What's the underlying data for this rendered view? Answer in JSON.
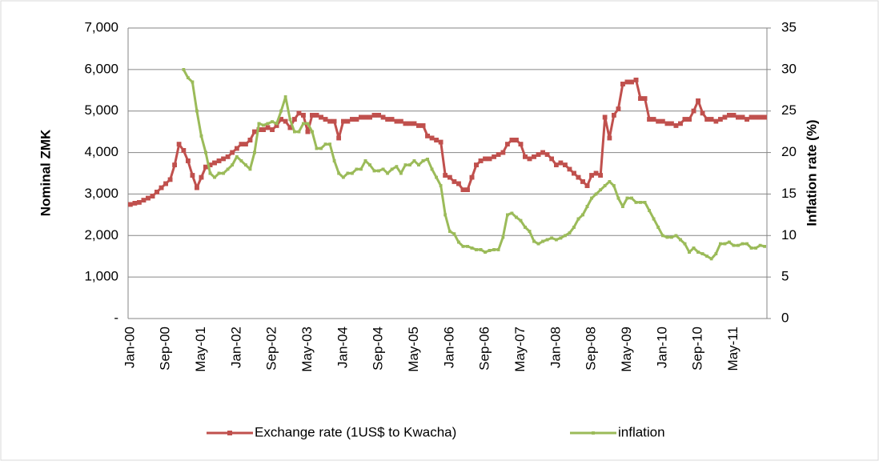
{
  "chart_data": {
    "type": "line",
    "categories": [
      "Jan-00",
      null,
      null,
      null,
      null,
      null,
      null,
      null,
      "Sep-00",
      null,
      null,
      null,
      null,
      null,
      null,
      null,
      "May-01",
      null,
      null,
      null,
      null,
      null,
      null,
      null,
      "Jan-02",
      null,
      null,
      null,
      null,
      null,
      null,
      null,
      "Sep-02",
      null,
      null,
      null,
      null,
      null,
      null,
      null,
      "May-03",
      null,
      null,
      null,
      null,
      null,
      null,
      null,
      "Jan-04",
      null,
      null,
      null,
      null,
      null,
      null,
      null,
      "Sep-04",
      null,
      null,
      null,
      null,
      null,
      null,
      null,
      "May-05",
      null,
      null,
      null,
      null,
      null,
      null,
      null,
      "Jan-06",
      null,
      null,
      null,
      null,
      null,
      null,
      null,
      "Sep-06",
      null,
      null,
      null,
      null,
      null,
      null,
      null,
      "May-07",
      null,
      null,
      null,
      null,
      null,
      null,
      null,
      "Jan-08",
      null,
      null,
      null,
      null,
      null,
      null,
      null,
      "Sep-08",
      null,
      null,
      null,
      null,
      null,
      null,
      null,
      "May-09",
      null,
      null,
      null,
      null,
      null,
      null,
      null,
      "Jan-10",
      null,
      null,
      null,
      null,
      null,
      null,
      null,
      "Sep-10",
      null,
      null,
      null,
      null,
      null,
      null,
      null,
      "May-11",
      null,
      null,
      null,
      null,
      null,
      null,
      null
    ],
    "y_label": "Nominal ZMK",
    "y2_label": "Inflation rate (%)",
    "ylim": [
      0,
      7000
    ],
    "yticks": [
      {
        "value": 0,
        "label": "-"
      },
      {
        "value": 1000,
        "label": "1,000"
      },
      {
        "value": 2000,
        "label": "2,000"
      },
      {
        "value": 3000,
        "label": "3,000"
      },
      {
        "value": 4000,
        "label": "4,000"
      },
      {
        "value": 5000,
        "label": "5,000"
      },
      {
        "value": 6000,
        "label": "6,000"
      },
      {
        "value": 7000,
        "label": "7,000"
      }
    ],
    "y2lim": [
      0,
      35
    ],
    "y2ticks": [
      0,
      5,
      10,
      15,
      20,
      25,
      30,
      35
    ],
    "grid": true,
    "legend": "bottom",
    "series": [
      {
        "name": "Exchange rate (1US$ to Kwacha)",
        "color": "#c0504d",
        "values": [
          2750,
          2780,
          2800,
          2850,
          2900,
          2950,
          3050,
          3150,
          3250,
          3350,
          3700,
          4200,
          4050,
          3800,
          3450,
          3150,
          3400,
          3650,
          3700,
          3750,
          3800,
          3850,
          3900,
          4000,
          4100,
          4200,
          4200,
          4300,
          4500,
          4550,
          4550,
          4600,
          4550,
          4650,
          4800,
          4750,
          4600,
          4800,
          4950,
          4900,
          4500,
          4900,
          4900,
          4850,
          4800,
          4750,
          4750,
          4350,
          4750,
          4750,
          4800,
          4800,
          4850,
          4850,
          4850,
          4900,
          4900,
          4850,
          4800,
          4800,
          4750,
          4750,
          4700,
          4700,
          4700,
          4650,
          4650,
          4400,
          4350,
          4300,
          4250,
          3450,
          3400,
          3300,
          3250,
          3100,
          3100,
          3400,
          3700,
          3800,
          3850,
          3850,
          3900,
          3950,
          4000,
          4200,
          4300,
          4300,
          4200,
          3900,
          3850,
          3900,
          3950,
          4000,
          3950,
          3850,
          3700,
          3750,
          3700,
          3600,
          3500,
          3400,
          3300,
          3200,
          3450,
          3500,
          3450,
          4850,
          4350,
          4900,
          5050,
          5650,
          5700,
          5700,
          5750,
          5300,
          5300,
          4800,
          4800,
          4750,
          4750,
          4700,
          4700,
          4650,
          4700,
          4800,
          4800,
          5000,
          5250,
          4950,
          4800,
          4800,
          4750,
          4800,
          4850,
          4900,
          4900,
          4850,
          4850,
          4800,
          4850,
          4850,
          4850,
          4850
        ]
      },
      {
        "name": "inflation",
        "color": "#9bbb59",
        "axis": "y2",
        "values": [
          null,
          null,
          null,
          null,
          null,
          null,
          null,
          null,
          null,
          null,
          null,
          null,
          30,
          29,
          28.5,
          25,
          22,
          20,
          17.5,
          17,
          17.5,
          17.5,
          18,
          18.5,
          19.5,
          19,
          18.5,
          18,
          20,
          23.5,
          23.3,
          23.5,
          23.7,
          23.5,
          25,
          26.7,
          24,
          22.5,
          22.5,
          23.5,
          23.5,
          22.5,
          20.5,
          20.5,
          21,
          21,
          19,
          17.5,
          17,
          17.5,
          17.5,
          18,
          18,
          19,
          18.5,
          17.8,
          17.8,
          18,
          17.5,
          18,
          18.3,
          17.5,
          18.5,
          18.5,
          19,
          18.5,
          19,
          19.2,
          18,
          17,
          16,
          12.5,
          10.5,
          10.2,
          9.2,
          8.7,
          8.7,
          8.5,
          8.3,
          8.3,
          8,
          8.2,
          8.3,
          8.3,
          9.8,
          12.5,
          12.7,
          12.2,
          11.8,
          11,
          10.5,
          9.3,
          9,
          9.3,
          9.5,
          9.7,
          9.5,
          9.7,
          10,
          10.3,
          11,
          12,
          12.5,
          13.5,
          14.5,
          15,
          15.5,
          16,
          16.5,
          16,
          14.5,
          13.5,
          14.5,
          14.5,
          14,
          14,
          14,
          13,
          12,
          11,
          10,
          9.8,
          9.8,
          10,
          9.5,
          9,
          8,
          8.5,
          8,
          7.8,
          7.5,
          7.2,
          7.8,
          9,
          9,
          9.2,
          8.8,
          8.8,
          9,
          9,
          8.5,
          8.5,
          8.8,
          8.7
        ]
      }
    ]
  }
}
